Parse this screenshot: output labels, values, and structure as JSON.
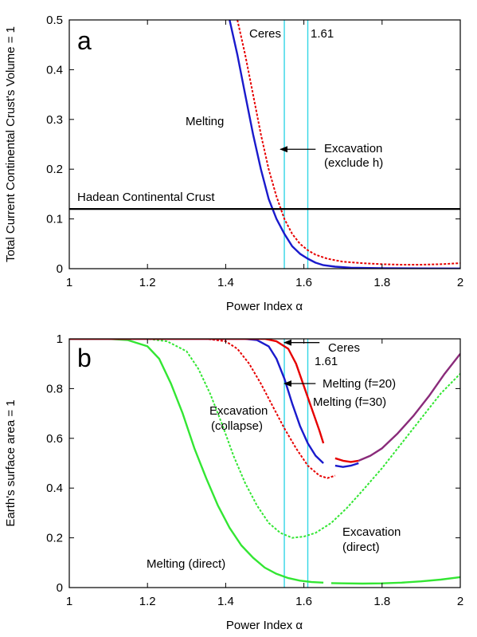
{
  "chart_data": [
    {
      "type": "line",
      "panel_label": "a",
      "xlabel": "Power Index α",
      "ylabel": "Total Current Continental Crust's Volume = 1",
      "xlim": [
        1,
        2
      ],
      "ylim": [
        0,
        0.5
      ],
      "xticks": [
        "1",
        "1.2",
        "1.4",
        "1.6",
        "1.8",
        "2"
      ],
      "yticks": [
        "0",
        "0.1",
        "0.2",
        "0.3",
        "0.4",
        "0.5"
      ],
      "grid": false,
      "colors": {
        "melting": "#1a1acc",
        "excavation": "#e60000",
        "hadean": "#000000",
        "vline": "#33d6e6"
      },
      "series": [
        {
          "id": "melting",
          "style": "solid",
          "points": [
            [
              1.41,
              0.5
            ],
            [
              1.43,
              0.43
            ],
            [
              1.45,
              0.35
            ],
            [
              1.47,
              0.27
            ],
            [
              1.49,
              0.2
            ],
            [
              1.51,
              0.14
            ],
            [
              1.53,
              0.1
            ],
            [
              1.55,
              0.07
            ],
            [
              1.57,
              0.045
            ],
            [
              1.59,
              0.03
            ],
            [
              1.61,
              0.02
            ],
            [
              1.63,
              0.012
            ],
            [
              1.65,
              0.007
            ],
            [
              1.68,
              0.004
            ],
            [
              1.72,
              0.002
            ],
            [
              1.8,
              0.001
            ],
            [
              1.9,
              0.0005
            ],
            [
              2.0,
              0.0003
            ]
          ]
        },
        {
          "id": "excavation",
          "style": "dashed",
          "points": [
            [
              1.43,
              0.5
            ],
            [
              1.45,
              0.43
            ],
            [
              1.47,
              0.35
            ],
            [
              1.49,
              0.27
            ],
            [
              1.51,
              0.2
            ],
            [
              1.53,
              0.145
            ],
            [
              1.55,
              0.1
            ],
            [
              1.57,
              0.07
            ],
            [
              1.59,
              0.05
            ],
            [
              1.61,
              0.037
            ],
            [
              1.63,
              0.028
            ],
            [
              1.66,
              0.02
            ],
            [
              1.7,
              0.014
            ],
            [
              1.75,
              0.011
            ],
            [
              1.8,
              0.009
            ],
            [
              1.85,
              0.008
            ],
            [
              1.9,
              0.008
            ],
            [
              1.95,
              0.009
            ],
            [
              2.0,
              0.011
            ]
          ]
        },
        {
          "id": "hadean",
          "style": "solid",
          "points": [
            [
              1.0,
              0.12
            ],
            [
              2.0,
              0.12
            ]
          ]
        }
      ],
      "vlines": [
        1.55,
        1.61
      ],
      "labels": {
        "ceres": "Ceres",
        "v161": "1.61",
        "melting": "Melting",
        "excavation1": "Excavation",
        "excavation2": "(exclude h)",
        "hadean": "Hadean Continental Crust"
      },
      "arrows": [
        {
          "from": [
            1.63,
            0.24
          ],
          "to": [
            1.54,
            0.24
          ]
        }
      ]
    },
    {
      "type": "line",
      "panel_label": "b",
      "xlabel": "Power Index α",
      "ylabel": "Earth's surface area = 1",
      "xlim": [
        1,
        2
      ],
      "ylim": [
        0,
        1
      ],
      "xticks": [
        "1",
        "1.2",
        "1.4",
        "1.6",
        "1.8",
        "2"
      ],
      "yticks": [
        "0",
        "0.2",
        "0.4",
        "0.6",
        "0.8",
        "1"
      ],
      "grid": false,
      "colors": {
        "melt20": "#e60000",
        "melt30": "#1a1acc",
        "collapse": "#e60000",
        "green": "#33e633",
        "purple": "#8a2b7a",
        "vline": "#33d6e6"
      },
      "series": [
        {
          "id": "melt-direct",
          "style": "solid",
          "color": "green",
          "points": [
            [
              1.0,
              1.0
            ],
            [
              1.1,
              1.0
            ],
            [
              1.15,
              0.995
            ],
            [
              1.2,
              0.97
            ],
            [
              1.23,
              0.92
            ],
            [
              1.26,
              0.82
            ],
            [
              1.29,
              0.7
            ],
            [
              1.32,
              0.56
            ],
            [
              1.35,
              0.44
            ],
            [
              1.38,
              0.33
            ],
            [
              1.41,
              0.24
            ],
            [
              1.44,
              0.17
            ],
            [
              1.47,
              0.12
            ],
            [
              1.5,
              0.08
            ],
            [
              1.53,
              0.055
            ],
            [
              1.56,
              0.038
            ],
            [
              1.59,
              0.028
            ],
            [
              1.62,
              0.022
            ],
            [
              1.65,
              0.02
            ]
          ]
        },
        {
          "id": "melt-direct-2",
          "style": "solid",
          "color": "green",
          "points": [
            [
              1.67,
              0.018
            ],
            [
              1.7,
              0.017
            ],
            [
              1.75,
              0.016
            ],
            [
              1.8,
              0.017
            ],
            [
              1.85,
              0.02
            ],
            [
              1.9,
              0.025
            ],
            [
              1.95,
              0.032
            ],
            [
              2.0,
              0.042
            ]
          ]
        },
        {
          "id": "exc-direct",
          "style": "dashed",
          "color": "green",
          "points": [
            [
              1.0,
              1.0
            ],
            [
              1.2,
              1.0
            ],
            [
              1.25,
              0.99
            ],
            [
              1.3,
              0.95
            ],
            [
              1.33,
              0.88
            ],
            [
              1.36,
              0.78
            ],
            [
              1.39,
              0.66
            ],
            [
              1.42,
              0.53
            ],
            [
              1.45,
              0.42
            ],
            [
              1.48,
              0.33
            ],
            [
              1.51,
              0.26
            ],
            [
              1.54,
              0.22
            ],
            [
              1.57,
              0.2
            ],
            [
              1.6,
              0.205
            ],
            [
              1.63,
              0.22
            ],
            [
              1.67,
              0.26
            ],
            [
              1.71,
              0.32
            ],
            [
              1.75,
              0.39
            ],
            [
              1.8,
              0.48
            ],
            [
              1.85,
              0.58
            ],
            [
              1.9,
              0.68
            ],
            [
              1.95,
              0.78
            ],
            [
              2.0,
              0.86
            ]
          ]
        },
        {
          "id": "exc-collapse",
          "style": "dashed",
          "color": "collapse",
          "points": [
            [
              1.0,
              1.0
            ],
            [
              1.35,
              1.0
            ],
            [
              1.4,
              0.99
            ],
            [
              1.43,
              0.96
            ],
            [
              1.46,
              0.9
            ],
            [
              1.49,
              0.82
            ],
            [
              1.52,
              0.73
            ],
            [
              1.55,
              0.64
            ],
            [
              1.58,
              0.56
            ],
            [
              1.61,
              0.49
            ],
            [
              1.64,
              0.45
            ],
            [
              1.66,
              0.44
            ],
            [
              1.68,
              0.45
            ]
          ]
        },
        {
          "id": "melt-30",
          "style": "solid",
          "color": "melt30",
          "points": [
            [
              1.0,
              1.0
            ],
            [
              1.45,
              1.0
            ],
            [
              1.48,
              0.995
            ],
            [
              1.51,
              0.97
            ],
            [
              1.53,
              0.92
            ],
            [
              1.55,
              0.84
            ],
            [
              1.57,
              0.74
            ],
            [
              1.59,
              0.65
            ],
            [
              1.61,
              0.58
            ],
            [
              1.63,
              0.53
            ],
            [
              1.65,
              0.5
            ]
          ]
        },
        {
          "id": "melt-30-b",
          "style": "solid",
          "color": "melt30",
          "points": [
            [
              1.68,
              0.49
            ],
            [
              1.7,
              0.485
            ],
            [
              1.72,
              0.49
            ],
            [
              1.74,
              0.5
            ]
          ]
        },
        {
          "id": "melt-20",
          "style": "solid",
          "color": "melt20",
          "points": [
            [
              1.0,
              1.0
            ],
            [
              1.5,
              1.0
            ],
            [
              1.53,
              0.99
            ],
            [
              1.56,
              0.96
            ],
            [
              1.58,
              0.9
            ],
            [
              1.6,
              0.81
            ],
            [
              1.62,
              0.72
            ],
            [
              1.64,
              0.63
            ],
            [
              1.65,
              0.58
            ]
          ]
        },
        {
          "id": "melt-20-b",
          "style": "solid",
          "color": "melt20",
          "points": [
            [
              1.68,
              0.52
            ],
            [
              1.7,
              0.51
            ],
            [
              1.72,
              0.505
            ],
            [
              1.74,
              0.51
            ]
          ]
        },
        {
          "id": "merged",
          "style": "solid",
          "color": "purple",
          "points": [
            [
              1.74,
              0.51
            ],
            [
              1.77,
              0.53
            ],
            [
              1.8,
              0.56
            ],
            [
              1.84,
              0.62
            ],
            [
              1.88,
              0.69
            ],
            [
              1.92,
              0.77
            ],
            [
              1.96,
              0.86
            ],
            [
              2.0,
              0.94
            ]
          ]
        }
      ],
      "vlines": [
        1.55,
        1.61
      ],
      "labels": {
        "ceres": "Ceres",
        "v161": "1.61",
        "melt20": "Melting (f=20)",
        "melt30": "Melting (f=30)",
        "collapse1": "Excavation",
        "collapse2": "(collapse)",
        "excdirect1": "Excavation",
        "excdirect2": "(direct)",
        "meltdirect": "Melting (direct)"
      },
      "arrows": [
        {
          "from": [
            1.64,
            0.985
          ],
          "to": [
            1.55,
            0.985
          ]
        },
        {
          "from": [
            1.63,
            0.82
          ],
          "to": [
            1.55,
            0.82
          ]
        }
      ]
    }
  ]
}
